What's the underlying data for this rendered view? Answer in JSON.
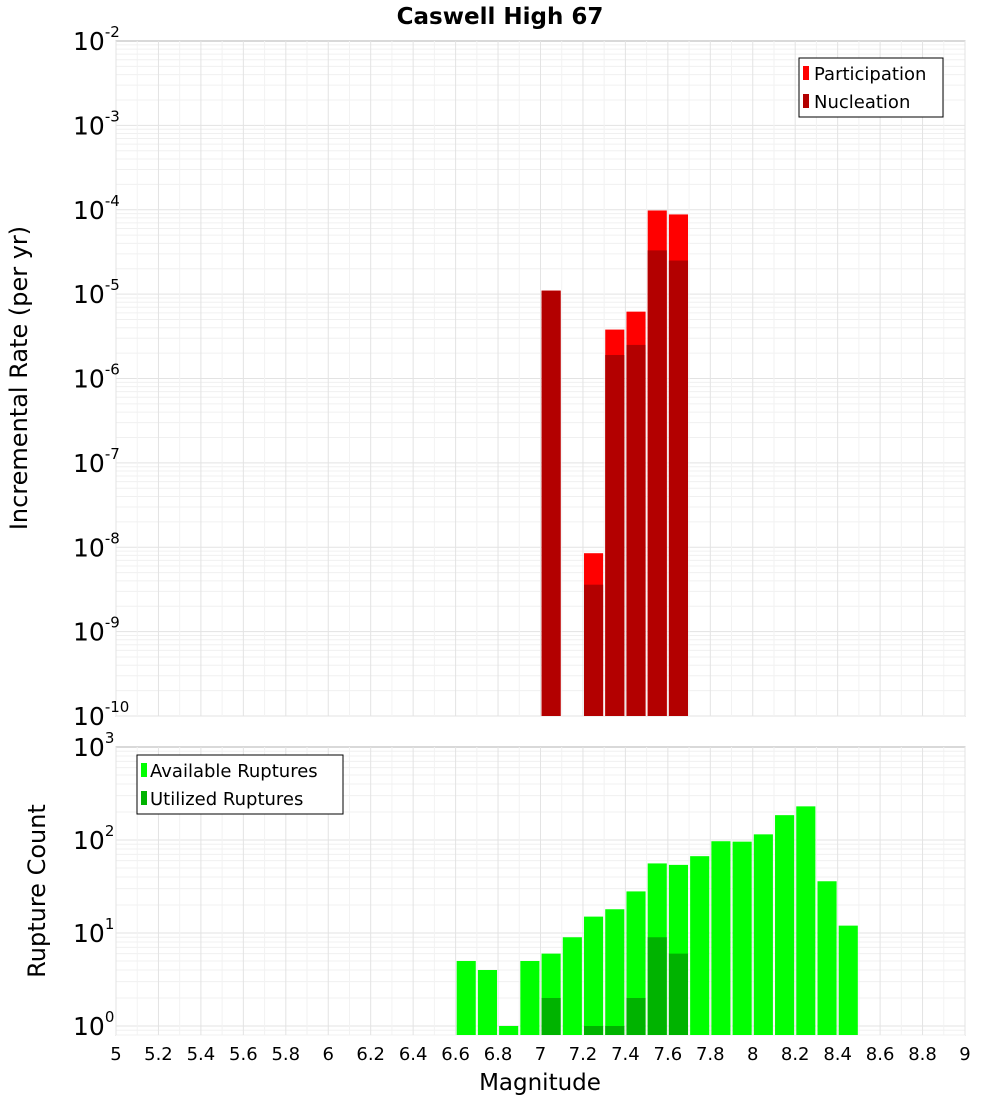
{
  "chart_data": [
    {
      "type": "bar",
      "title": "Caswell High 67",
      "ylabel": "Incremental Rate (per yr)",
      "xlabel": "",
      "yscale": "log",
      "ylim": [
        1e-10,
        0.01
      ],
      "xlim": [
        5,
        9
      ],
      "grid": true,
      "legend_position": "top-right",
      "yticks": [
        {
          "base": "10",
          "exp": "-10"
        },
        {
          "base": "10",
          "exp": "-9"
        },
        {
          "base": "10",
          "exp": "-8"
        },
        {
          "base": "10",
          "exp": "-7"
        },
        {
          "base": "10",
          "exp": "-6"
        },
        {
          "base": "10",
          "exp": "-5"
        },
        {
          "base": "10",
          "exp": "-4"
        },
        {
          "base": "10",
          "exp": "-3"
        },
        {
          "base": "10",
          "exp": "-2"
        }
      ],
      "series": [
        {
          "name": "Participation",
          "color": "#ff0000",
          "x": [
            7.05,
            7.25,
            7.35,
            7.45,
            7.55,
            7.65
          ],
          "values": [
            1.1e-05,
            8.5e-09,
            3.8e-06,
            6.2e-06,
            9.8e-05,
            8.8e-05
          ]
        },
        {
          "name": "Nucleation",
          "color": "#b30000",
          "x": [
            7.05,
            7.25,
            7.35,
            7.45,
            7.55,
            7.65
          ],
          "values": [
            1.1e-05,
            3.6e-09,
            1.9e-06,
            2.5e-06,
            3.3e-05,
            2.5e-05
          ]
        }
      ]
    },
    {
      "type": "bar",
      "title": "",
      "ylabel": "Rupture Count",
      "xlabel": "Magnitude",
      "yscale": "log",
      "ylim": [
        0.8,
        1000
      ],
      "xlim": [
        5,
        9
      ],
      "grid": true,
      "legend_position": "top-left",
      "xticks": [
        "5",
        "5.2",
        "5.4",
        "5.6",
        "5.8",
        "6",
        "6.2",
        "6.4",
        "6.6",
        "6.8",
        "7",
        "7.2",
        "7.4",
        "7.6",
        "7.8",
        "8",
        "8.2",
        "8.4",
        "8.6",
        "8.8",
        "9"
      ],
      "yticks": [
        {
          "base": "10",
          "exp": "0"
        },
        {
          "base": "10",
          "exp": "1"
        },
        {
          "base": "10",
          "exp": "2"
        },
        {
          "base": "10",
          "exp": "3"
        }
      ],
      "series": [
        {
          "name": "Available Ruptures",
          "color": "#00ff00",
          "x": [
            6.65,
            6.75,
            6.85,
            6.95,
            7.05,
            7.15,
            7.25,
            7.35,
            7.45,
            7.55,
            7.65,
            7.75,
            7.85,
            7.95,
            8.05,
            8.15,
            8.25,
            8.35,
            8.45
          ],
          "values": [
            5,
            4,
            1,
            5,
            6,
            9,
            15,
            18,
            28,
            56,
            54,
            67,
            97,
            96,
            115,
            185,
            230,
            36,
            12
          ]
        },
        {
          "name": "Utilized Ruptures",
          "color": "#00b300",
          "x": [
            7.05,
            7.25,
            7.35,
            7.45,
            7.55,
            7.65
          ],
          "values": [
            2,
            1,
            1,
            2,
            9,
            6
          ]
        }
      ]
    }
  ]
}
